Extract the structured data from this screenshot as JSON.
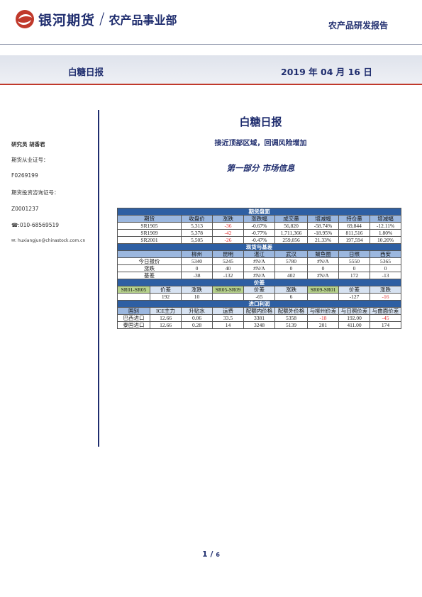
{
  "header": {
    "brand": "银河期货",
    "separator": "/",
    "dept": "农产品事业部",
    "report_type": "农产品研发报告"
  },
  "band": {
    "title": "白糖日报",
    "date": "2019 年 04 月 16 日"
  },
  "sidebar": {
    "analyst": "研究员  胡香君",
    "license_label": "期货从业证号：",
    "license_no": "F0269199",
    "consult_label": "期货投资咨询证号：",
    "consult_no": "Z0001237",
    "phone": "☎:010-68569519",
    "email": "✉: huxiangjun@chinastock.com.cn"
  },
  "report": {
    "title": "白糖日报",
    "subtitle": "接近顶部区域，回调风险增加",
    "section": "第一部分   市场信息"
  },
  "table": {
    "futures": {
      "title": "期货盘面",
      "headers": [
        "期货",
        "收盘价",
        "涨跌",
        "涨跌幅",
        "成交量",
        "增减幅",
        "持仓量",
        "增减幅"
      ],
      "rows": [
        [
          "SR1905",
          "5,313",
          "-36",
          "-0.67%",
          "56,820",
          "-58.74%",
          "69,844",
          "-12.11%"
        ],
        [
          "SR1909",
          "5,378",
          "-42",
          "-0.77%",
          "1,711,366",
          "-18.95%",
          "811,516",
          "1.80%"
        ],
        [
          "SR2001",
          "5,505",
          "-26",
          "-0.47%",
          "259,056",
          "21.33%",
          "197,594",
          "10.20%"
        ]
      ]
    },
    "spot": {
      "title": "现货与基差",
      "headers": [
        "",
        "柳州",
        "昆明",
        "湛江",
        "武汉",
        "鲅鱼圈",
        "日照",
        "西安"
      ],
      "rows": [
        [
          "今日报价",
          "5340",
          "5245",
          "#N/A",
          "5780",
          "#N/A",
          "5550",
          "5365"
        ],
        [
          "涨跌",
          "0",
          "40",
          "#N/A",
          "0",
          "0",
          "0",
          "0"
        ],
        [
          "基差",
          "-38",
          "-132",
          "#N/A",
          "402",
          "#N/A",
          "172",
          "-13"
        ]
      ]
    },
    "spread": {
      "title": "价差",
      "headers": [
        "SR01-SR05",
        "价差",
        "涨跌",
        "SR05-SR09",
        "价差",
        "涨跌",
        "SR09-SR01",
        "价差",
        "涨跌"
      ],
      "row": [
        "",
        "192",
        "10",
        "",
        "-65",
        "6",
        "",
        "-127",
        "-16"
      ]
    },
    "import": {
      "title": "进口利润",
      "headers": [
        "国别",
        "ICE主力",
        "升贴水",
        "运费",
        "配额内价格",
        "配额外价格",
        "与柳州价差",
        "与日照价差",
        "与曲面价差"
      ],
      "rows": [
        [
          "巴西进口",
          "12.66",
          "0.06",
          "33.5",
          "3381",
          "5358",
          "-18",
          "192.00",
          "-45"
        ],
        [
          "泰国进口",
          "12.66",
          "0.28",
          "14",
          "3248",
          "5139",
          "201",
          "411.00",
          "174"
        ]
      ]
    }
  },
  "footer": {
    "page": "1",
    "sep": "/",
    "total": "6"
  },
  "colors": {
    "navy": "#1f2d6e",
    "accent_red": "#c0392b",
    "table_header": "#2e5fa3",
    "spread_green": "#b7d28d",
    "negative": "#e03030"
  }
}
